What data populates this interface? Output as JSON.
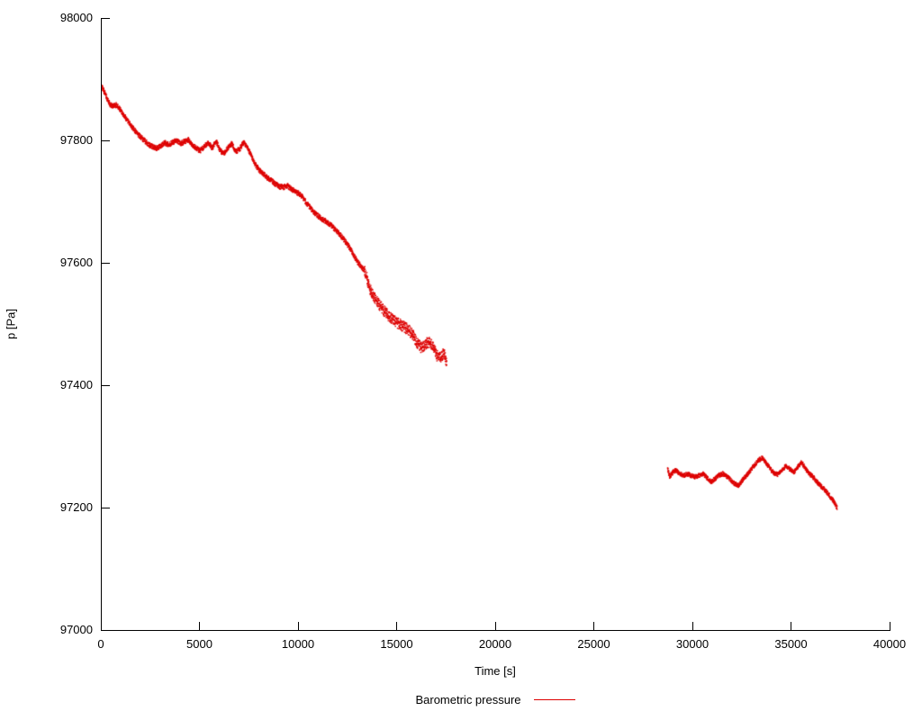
{
  "chart_data": {
    "type": "scatter",
    "title": "",
    "xlabel": "Time [s]",
    "ylabel": "p [Pa]",
    "legend_label": "Barometric pressure",
    "legend_position": "bottom-center",
    "grid": false,
    "axis_color": "#000000",
    "xlim": [
      0,
      40000
    ],
    "ylim": [
      97000,
      98000
    ],
    "x_ticks": [
      0,
      5000,
      10000,
      15000,
      20000,
      25000,
      30000,
      35000,
      40000
    ],
    "y_ticks": [
      97000,
      97200,
      97400,
      97600,
      97800,
      98000
    ],
    "noise_bands": [
      {
        "from": 0,
        "to": 13300,
        "amp": 4
      },
      {
        "from": 13300,
        "to": 17600,
        "amp": 9
      },
      {
        "from": 28600,
        "to": 37400,
        "amp": 3.5
      }
    ],
    "series": [
      {
        "name": "Barometric pressure",
        "color": "#dd0000",
        "segments": [
          [
            [
              0,
              97888
            ],
            [
              150,
              97878
            ],
            [
              300,
              97866
            ],
            [
              450,
              97858
            ],
            [
              600,
              97856
            ],
            [
              750,
              97858
            ],
            [
              900,
              97852
            ],
            [
              1050,
              97845
            ],
            [
              1200,
              97838
            ],
            [
              1400,
              97828
            ],
            [
              1600,
              97819
            ],
            [
              1800,
              97811
            ],
            [
              2000,
              97805
            ],
            [
              2200,
              97799
            ],
            [
              2400,
              97793
            ],
            [
              2600,
              97789
            ],
            [
              2800,
              97787
            ],
            [
              3000,
              97791
            ],
            [
              3200,
              97796
            ],
            [
              3400,
              97793
            ],
            [
              3600,
              97797
            ],
            [
              3800,
              97800
            ],
            [
              4000,
              97795
            ],
            [
              4200,
              97798
            ],
            [
              4400,
              97801
            ],
            [
              4600,
              97793
            ],
            [
              4800,
              97787
            ],
            [
              5000,
              97783
            ],
            [
              5200,
              97790
            ],
            [
              5400,
              97797
            ],
            [
              5600,
              97787
            ],
            [
              5800,
              97799
            ],
            [
              6000,
              97783
            ],
            [
              6200,
              97779
            ],
            [
              6400,
              97788
            ],
            [
              6600,
              97795
            ],
            [
              6800,
              97781
            ],
            [
              7000,
              97786
            ],
            [
              7200,
              97797
            ],
            [
              7400,
              97787
            ],
            [
              7600,
              97774
            ],
            [
              7800,
              97760
            ],
            [
              8000,
              97751
            ],
            [
              8200,
              97745
            ],
            [
              8400,
              97739
            ],
            [
              8600,
              97735
            ],
            [
              8800,
              97729
            ],
            [
              9000,
              97725
            ],
            [
              9200,
              97723
            ],
            [
              9400,
              97726
            ],
            [
              9600,
              97721
            ],
            [
              9800,
              97717
            ],
            [
              10000,
              97713
            ],
            [
              10200,
              97707
            ],
            [
              10400,
              97697
            ],
            [
              10600,
              97689
            ],
            [
              10800,
              97681
            ],
            [
              11000,
              97676
            ],
            [
              11200,
              97671
            ],
            [
              11400,
              97667
            ],
            [
              11600,
              97662
            ],
            [
              11800,
              97656
            ],
            [
              12000,
              97649
            ],
            [
              12200,
              97641
            ],
            [
              12400,
              97633
            ],
            [
              12600,
              97623
            ],
            [
              12800,
              97611
            ],
            [
              13000,
              97600
            ],
            [
              13200,
              97593
            ],
            [
              13400,
              97583
            ],
            [
              13500,
              97568
            ],
            [
              13650,
              97554
            ],
            [
              13800,
              97545
            ],
            [
              14000,
              97536
            ],
            [
              14200,
              97526
            ],
            [
              14400,
              97518
            ],
            [
              14600,
              97512
            ],
            [
              14800,
              97507
            ],
            [
              15000,
              97502
            ],
            [
              15200,
              97498
            ],
            [
              15400,
              97494
            ],
            [
              15600,
              97489
            ],
            [
              15800,
              97481
            ],
            [
              16000,
              97469
            ],
            [
              16200,
              97461
            ],
            [
              16400,
              97466
            ],
            [
              16600,
              97472
            ],
            [
              16800,
              97464
            ],
            [
              17000,
              97448
            ],
            [
              17200,
              97446
            ],
            [
              17350,
              97452
            ],
            [
              17500,
              97438
            ]
          ],
          [
            [
              28700,
              97263
            ],
            [
              28800,
              97251
            ],
            [
              28950,
              97257
            ],
            [
              29100,
              97261
            ],
            [
              29300,
              97256
            ],
            [
              29500,
              97252
            ],
            [
              29700,
              97255
            ],
            [
              29900,
              97252
            ],
            [
              30100,
              97250
            ],
            [
              30300,
              97253
            ],
            [
              30500,
              97255
            ],
            [
              30700,
              97248
            ],
            [
              30900,
              97242
            ],
            [
              31100,
              97247
            ],
            [
              31300,
              97253
            ],
            [
              31500,
              97255
            ],
            [
              31700,
              97251
            ],
            [
              31900,
              97245
            ],
            [
              32100,
              97239
            ],
            [
              32300,
              97236
            ],
            [
              32500,
              97245
            ],
            [
              32700,
              97253
            ],
            [
              32900,
              97261
            ],
            [
              33100,
              97269
            ],
            [
              33300,
              97277
            ],
            [
              33500,
              97281
            ],
            [
              33700,
              97273
            ],
            [
              33900,
              97263
            ],
            [
              34100,
              97256
            ],
            [
              34300,
              97254
            ],
            [
              34500,
              97262
            ],
            [
              34700,
              97268
            ],
            [
              34900,
              97263
            ],
            [
              35100,
              97257
            ],
            [
              35300,
              97267
            ],
            [
              35500,
              97274
            ],
            [
              35700,
              97263
            ],
            [
              35900,
              97255
            ],
            [
              36100,
              97249
            ],
            [
              36300,
              97241
            ],
            [
              36500,
              97234
            ],
            [
              36700,
              97228
            ],
            [
              36900,
              97220
            ],
            [
              37100,
              97211
            ],
            [
              37300,
              97200
            ]
          ]
        ]
      }
    ]
  }
}
